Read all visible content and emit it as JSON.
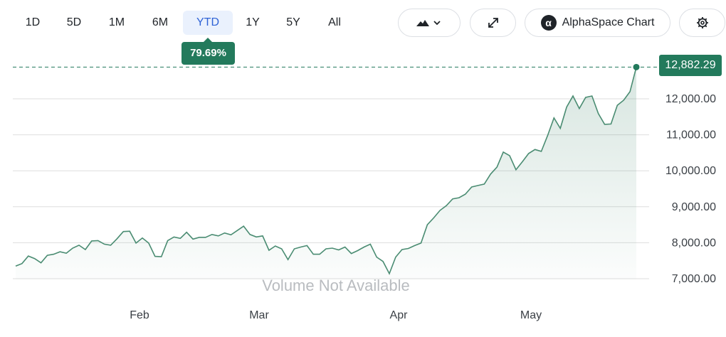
{
  "toolbar": {
    "ranges": [
      "1D",
      "5D",
      "1M",
      "6M",
      "YTD",
      "1Y",
      "5Y",
      "All"
    ],
    "active_range": "YTD",
    "chart_type_icon": "mountain-chart-icon",
    "expand_icon": "expand-arrows-icon",
    "brand_logo_glyph": "α",
    "brand_label": "AlphaSpace Chart",
    "settings_icon": "gear-icon"
  },
  "badges": {
    "change_pct": "79.69%",
    "last_value": "12,882.29"
  },
  "colors": {
    "line": "#4a8c72",
    "badge": "#237a5c",
    "active_tab_bg": "#eaf1fd",
    "active_tab_text": "#2f63d6",
    "grid": "#dedede"
  },
  "chart_data": {
    "type": "area",
    "x_tick_labels": [
      "Feb",
      "Mar",
      "Apr",
      "May"
    ],
    "y_tick_labels": [
      "7,000.00",
      "8,000.00",
      "9,000.00",
      "10,000.00",
      "11,000.00",
      "12,000.00"
    ],
    "y_ticks": [
      7000,
      8000,
      9000,
      10000,
      11000,
      12000
    ],
    "ylim": [
      6650,
      13100
    ],
    "grid": true,
    "annotation": "Volume Not Available",
    "last_value": 12882.29,
    "values": [
      7350,
      7420,
      7630,
      7560,
      7440,
      7650,
      7680,
      7750,
      7710,
      7850,
      7930,
      7810,
      8050,
      8060,
      7960,
      7930,
      8110,
      8310,
      8320,
      7990,
      8130,
      7990,
      7620,
      7610,
      8060,
      8160,
      8120,
      8290,
      8100,
      8150,
      8150,
      8230,
      8190,
      8270,
      8220,
      8340,
      8460,
      8230,
      8160,
      8190,
      7790,
      7910,
      7830,
      7530,
      7830,
      7880,
      7920,
      7680,
      7680,
      7830,
      7850,
      7800,
      7880,
      7700,
      7780,
      7880,
      7960,
      7600,
      7480,
      7140,
      7600,
      7810,
      7840,
      7920,
      7990,
      8500,
      8690,
      8900,
      9030,
      9220,
      9250,
      9350,
      9550,
      9590,
      9630,
      9910,
      10100,
      10520,
      10420,
      10030,
      10250,
      10480,
      10590,
      10540,
      10980,
      11470,
      11180,
      11770,
      12080,
      11730,
      12040,
      12080,
      11590,
      11290,
      11300,
      11820,
      11960,
      12200,
      12882.29
    ]
  }
}
